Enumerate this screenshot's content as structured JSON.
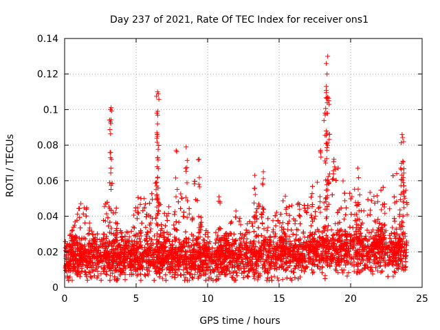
{
  "chart_data": {
    "type": "scatter",
    "title": "Day 237 of 2021, Rate Of TEC Index for receiver ons1",
    "xlabel": "GPS time / hours",
    "ylabel": "ROTI / TECUs",
    "xlim": [
      0,
      25
    ],
    "ylim": [
      0,
      0.14
    ],
    "xticks": [
      0,
      5,
      10,
      15,
      20,
      25
    ],
    "xtick_labels": [
      "0",
      "5",
      "10",
      "15",
      "20",
      "25"
    ],
    "yticks": [
      0,
      0.02,
      0.04,
      0.06,
      0.08,
      0.1,
      0.12,
      0.14
    ],
    "ytick_labels": [
      "0",
      "0.02",
      "0.04",
      "0.06",
      "0.08",
      "0.1",
      "0.12",
      "0.14"
    ],
    "grid": true,
    "marker": "+",
    "series_color": "#ff0000",
    "notable_points": [
      {
        "x": 3.2,
        "y": 0.1
      },
      {
        "x": 3.25,
        "y": 0.101
      },
      {
        "x": 3.2,
        "y": 0.093
      },
      {
        "x": 6.5,
        "y": 0.11
      },
      {
        "x": 6.55,
        "y": 0.109
      },
      {
        "x": 6.45,
        "y": 0.098
      },
      {
        "x": 6.5,
        "y": 0.092
      },
      {
        "x": 6.45,
        "y": 0.087
      },
      {
        "x": 6.5,
        "y": 0.073
      },
      {
        "x": 8.5,
        "y": 0.079
      },
      {
        "x": 7.8,
        "y": 0.077
      },
      {
        "x": 9.4,
        "y": 0.072
      },
      {
        "x": 18.4,
        "y": 0.13
      },
      {
        "x": 18.3,
        "y": 0.126
      },
      {
        "x": 18.35,
        "y": 0.12
      },
      {
        "x": 18.3,
        "y": 0.113
      },
      {
        "x": 18.4,
        "y": 0.107
      },
      {
        "x": 18.5,
        "y": 0.103
      },
      {
        "x": 18.2,
        "y": 0.098
      },
      {
        "x": 18.3,
        "y": 0.088
      },
      {
        "x": 17.9,
        "y": 0.077
      },
      {
        "x": 23.6,
        "y": 0.086
      },
      {
        "x": 23.7,
        "y": 0.082
      },
      {
        "x": 23.65,
        "y": 0.071
      },
      {
        "x": 23.5,
        "y": 0.067
      },
      {
        "x": 20.5,
        "y": 0.067
      },
      {
        "x": 13.9,
        "y": 0.065
      },
      {
        "x": 13.3,
        "y": 0.063
      },
      {
        "x": 10.8,
        "y": 0.051
      }
    ],
    "bulk_description_values": {
      "baseline_min": 0.004,
      "baseline_max": 0.035,
      "n_points_approx": 6000
    }
  }
}
